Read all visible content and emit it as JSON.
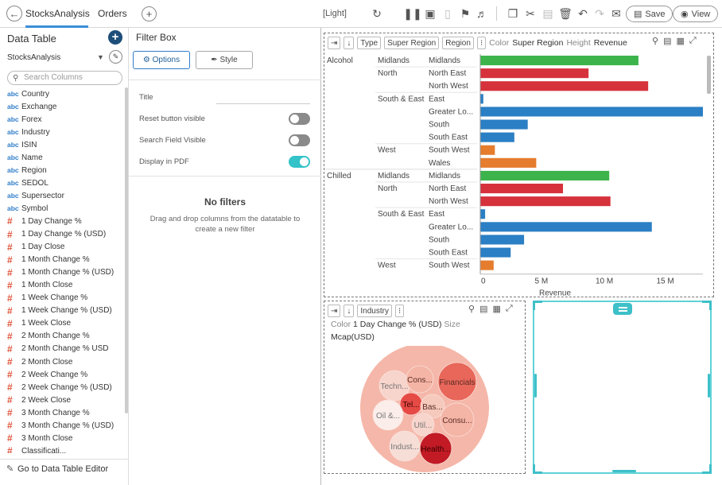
{
  "topbar": {
    "back_icon": "arrow-left-icon",
    "tabs": [
      {
        "label": "StocksAnalysis",
        "active": true
      },
      {
        "label": "Orders",
        "active": false
      }
    ],
    "add_tab_icon": "plus-icon",
    "theme": "[Light]",
    "save_label": "Save",
    "view_label": "View"
  },
  "data_table": {
    "title": "Data Table",
    "datasource": "StocksAnalysis",
    "search_placeholder": "Search Columns",
    "footer_label": "Go to Data Table Editor",
    "columns": [
      {
        "type": "abc",
        "name": "Country"
      },
      {
        "type": "abc",
        "name": "Exchange"
      },
      {
        "type": "abc",
        "name": "Forex"
      },
      {
        "type": "abc",
        "name": "Industry"
      },
      {
        "type": "abc",
        "name": "ISIN"
      },
      {
        "type": "abc",
        "name": "Name"
      },
      {
        "type": "abc",
        "name": "Region"
      },
      {
        "type": "abc",
        "name": "SEDOL"
      },
      {
        "type": "abc",
        "name": "Supersector"
      },
      {
        "type": "abc",
        "name": "Symbol"
      },
      {
        "type": "#",
        "name": "1 Day Change %"
      },
      {
        "type": "#",
        "name": "1 Day Change % (USD)"
      },
      {
        "type": "#",
        "name": "1 Day Close"
      },
      {
        "type": "#",
        "name": "1 Month Change %"
      },
      {
        "type": "#",
        "name": "1 Month Change % (USD)"
      },
      {
        "type": "#",
        "name": "1 Month Close"
      },
      {
        "type": "#",
        "name": "1 Week Change %"
      },
      {
        "type": "#",
        "name": "1 Week Change % (USD)"
      },
      {
        "type": "#",
        "name": "1 Week Close"
      },
      {
        "type": "#",
        "name": "2 Month Change %"
      },
      {
        "type": "#",
        "name": "2 Month Change % USD"
      },
      {
        "type": "#",
        "name": "2 Month Close"
      },
      {
        "type": "#",
        "name": "2 Week Change %"
      },
      {
        "type": "#",
        "name": "2 Week Change % (USD)"
      },
      {
        "type": "#",
        "name": "2 Week Close"
      },
      {
        "type": "#",
        "name": "3 Month Change %"
      },
      {
        "type": "#",
        "name": "3 Month Change % (USD)"
      },
      {
        "type": "#",
        "name": "3 Month Close"
      },
      {
        "type": "#",
        "name": "Classificati..."
      }
    ]
  },
  "filter_box": {
    "title": "Filter Box",
    "options_tab": "Options",
    "style_tab": "Style",
    "title_label": "Title",
    "title_value": "",
    "reset_label": "Reset button visible",
    "reset_on": false,
    "search_label": "Search Field Visible",
    "search_on": false,
    "pdf_label": "Display in PDF",
    "pdf_on": true,
    "empty_title": "No filters",
    "empty_text": "Drag and drop columns from the datatable to create a new filter"
  },
  "bar_viz": {
    "toolbar": {
      "type": "Type",
      "super_region": "Super Region",
      "region": "Region",
      "color_label": "Color",
      "color_value": "Super Region",
      "height_label": "Height",
      "height_value": "Revenue"
    }
  },
  "bubble_viz": {
    "toolbar": {
      "industry": "Industry",
      "color_label": "Color",
      "color_value": "1 Day Change % (USD)",
      "size_label": "Size",
      "size_value": "Mcap(USD)"
    }
  },
  "chart_data": [
    {
      "type": "bar",
      "orientation": "horizontal",
      "xlabel": "Revenue",
      "ylabel": "",
      "xlim": [
        0,
        18.3
      ],
      "x_unit": "M",
      "x_ticks": [
        "0",
        "5 M",
        "10 M",
        "15 M"
      ],
      "super_region_colors": {
        "Midlands": "#3cb44b",
        "North": "#d6323c",
        "South & East": "#2b7fc4",
        "West": "#e57c2e"
      },
      "rows": [
        {
          "type": "Alcohol",
          "super_region": "Midlands",
          "region": "Midlands",
          "value": 13.0
        },
        {
          "type": "",
          "super_region": "North",
          "region": "North East",
          "value": 8.9
        },
        {
          "type": "",
          "super_region": "",
          "region": "North West",
          "value": 13.8
        },
        {
          "type": "",
          "super_region": "South & East",
          "region": "East",
          "value": 0.25
        },
        {
          "type": "",
          "super_region": "",
          "region": "Greater Lo...",
          "value": 18.3
        },
        {
          "type": "",
          "super_region": "",
          "region": "South",
          "value": 3.9
        },
        {
          "type": "",
          "super_region": "",
          "region": "South East",
          "value": 2.8
        },
        {
          "type": "",
          "super_region": "West",
          "region": "South West",
          "value": 1.2
        },
        {
          "type": "",
          "super_region": "",
          "region": "Wales",
          "value": 4.6
        },
        {
          "type": "Chilled",
          "super_region": "Midlands",
          "region": "Midlands",
          "value": 10.6
        },
        {
          "type": "",
          "super_region": "North",
          "region": "North East",
          "value": 6.8
        },
        {
          "type": "",
          "super_region": "",
          "region": "North West",
          "value": 10.7
        },
        {
          "type": "",
          "super_region": "South & East",
          "region": "East",
          "value": 0.4
        },
        {
          "type": "",
          "super_region": "",
          "region": "Greater Lo...",
          "value": 14.1
        },
        {
          "type": "",
          "super_region": "",
          "region": "South",
          "value": 3.6
        },
        {
          "type": "",
          "super_region": "",
          "region": "South East",
          "value": 2.5
        },
        {
          "type": "",
          "super_region": "West",
          "region": "South West",
          "value": 1.1
        }
      ]
    },
    {
      "type": "bubble",
      "title": "",
      "bubbles": [
        {
          "label": "Techn...",
          "color": "#f7d4cc"
        },
        {
          "label": "Cons...",
          "color": "#f4b5a6"
        },
        {
          "label": "Financials",
          "color": "#e8675a"
        },
        {
          "label": "Tel...",
          "color": "#e64a45"
        },
        {
          "label": "Bas...",
          "color": "#f6c9bd"
        },
        {
          "label": "Oil &...",
          "color": "#fbeeea"
        },
        {
          "label": "Util...",
          "color": "#f7d4cc"
        },
        {
          "label": "Consu...",
          "color": "#f4b5a6"
        },
        {
          "label": "Indust...",
          "color": "#f6ddd6"
        },
        {
          "label": "Health...",
          "color": "#c21b25"
        }
      ]
    }
  ]
}
